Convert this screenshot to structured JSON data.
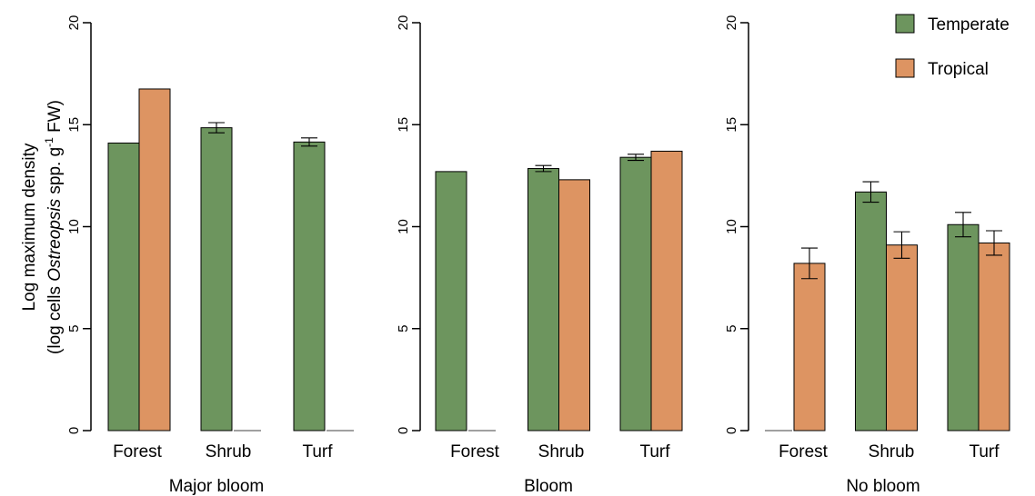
{
  "chart_data": {
    "type": "bar",
    "ylabel_line1": "Log maximum density",
    "ylabel_line2_prefix": "(log cells ",
    "ylabel_line2_italic": "Ostreopsis",
    "ylabel_line2_mid": " spp. g",
    "ylabel_line2_sup": "-1",
    "ylabel_line2_suffix": " FW)",
    "ylim": [
      0,
      20
    ],
    "yticks": [
      "0",
      "5",
      "10",
      "15",
      "20"
    ],
    "colors": {
      "Temperate": "#6d955e",
      "Tropical": "#dd9462"
    },
    "legend": {
      "position": "top-right",
      "entries": [
        "Temperate",
        "Tropical"
      ]
    },
    "panels": [
      {
        "label": "Major bloom",
        "categories": [
          "Forest",
          "Shrub",
          "Turf"
        ],
        "series": [
          {
            "name": "Temperate",
            "values": [
              14.1,
              14.85,
              14.15
            ],
            "errors": [
              null,
              0.25,
              0.2
            ]
          },
          {
            "name": "Tropical",
            "values": [
              16.75,
              null,
              null
            ],
            "errors": [
              null,
              null,
              null
            ]
          }
        ]
      },
      {
        "label": "Bloom",
        "categories": [
          "Forest",
          "Shrub",
          "Turf"
        ],
        "series": [
          {
            "name": "Temperate",
            "values": [
              12.7,
              12.85,
              13.4
            ],
            "errors": [
              null,
              0.15,
              0.15
            ]
          },
          {
            "name": "Tropical",
            "values": [
              null,
              12.3,
              13.7
            ],
            "errors": [
              null,
              null,
              null
            ]
          }
        ]
      },
      {
        "label": "No bloom",
        "categories": [
          "Forest",
          "Shrub",
          "Turf"
        ],
        "series": [
          {
            "name": "Temperate",
            "values": [
              null,
              11.7,
              10.1
            ],
            "errors": [
              null,
              0.5,
              0.6
            ]
          },
          {
            "name": "Tropical",
            "values": [
              8.2,
              9.1,
              9.2
            ],
            "errors": [
              0.75,
              0.65,
              0.6
            ]
          }
        ]
      }
    ]
  }
}
